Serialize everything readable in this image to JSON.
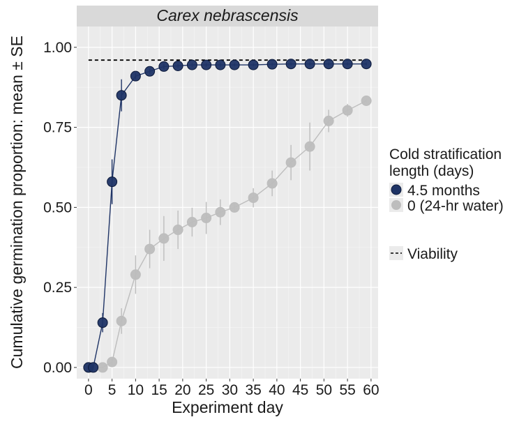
{
  "chart_data": {
    "type": "line",
    "title": "Carex nebrascensis",
    "xlabel": "Experiment day",
    "ylabel": "Cumulative germination proportion: mean ± SE",
    "xlim": [
      -2.5,
      61.5
    ],
    "ylim": [
      -0.035,
      1.065
    ],
    "x_ticks": [
      0,
      5,
      10,
      15,
      20,
      25,
      30,
      35,
      40,
      45,
      50,
      55,
      60
    ],
    "y_ticks": [
      0.0,
      0.25,
      0.5,
      0.75,
      1.0
    ],
    "y_tick_labels": [
      "0.00",
      "0.25",
      "0.50",
      "0.75",
      "1.00"
    ],
    "grid": true,
    "legend": {
      "title_line1": "Cold stratification",
      "title_line2": "length (days)",
      "placement": "right",
      "viability_label": "Viability"
    },
    "x": [
      0,
      1,
      3,
      5,
      7,
      10,
      13,
      16,
      19,
      22,
      25,
      28,
      31,
      35,
      39,
      43,
      47,
      51,
      55,
      59
    ],
    "series": [
      {
        "name": "4.5 months",
        "color": "#1f3466",
        "values": [
          0,
          0,
          0.14,
          0.58,
          0.85,
          0.91,
          0.925,
          0.94,
          0.942,
          0.945,
          0.945,
          0.945,
          0.945,
          0.945,
          0.947,
          0.948,
          0.948,
          0.948,
          0.948,
          0.948
        ],
        "se": [
          0,
          0,
          0.03,
          0.07,
          0.05,
          0.01,
          0.008,
          0.008,
          0.006,
          0.006,
          0.006,
          0.006,
          0.005,
          0.005,
          0.005,
          0.005,
          0.005,
          0.005,
          0.005,
          0.005
        ]
      },
      {
        "name": "0 (24-hr water)",
        "color": "#bdbdbd",
        "values": [
          0,
          0,
          0,
          0.017,
          0.145,
          0.29,
          0.37,
          0.403,
          0.43,
          0.454,
          0.467,
          0.485,
          0.5,
          0.53,
          0.575,
          0.64,
          0.69,
          0.77,
          0.803,
          0.833
        ],
        "se": [
          0,
          0,
          0,
          0.01,
          0.04,
          0.06,
          0.06,
          0.07,
          0.06,
          0.045,
          0.05,
          0.04,
          0.015,
          0.03,
          0.04,
          0.055,
          0.075,
          0.035,
          0.02,
          0.005
        ]
      }
    ],
    "reference_line": {
      "name": "Viability",
      "value": 0.96,
      "x_range": [
        0,
        59
      ],
      "style": "dashed",
      "color": "#000000"
    }
  }
}
